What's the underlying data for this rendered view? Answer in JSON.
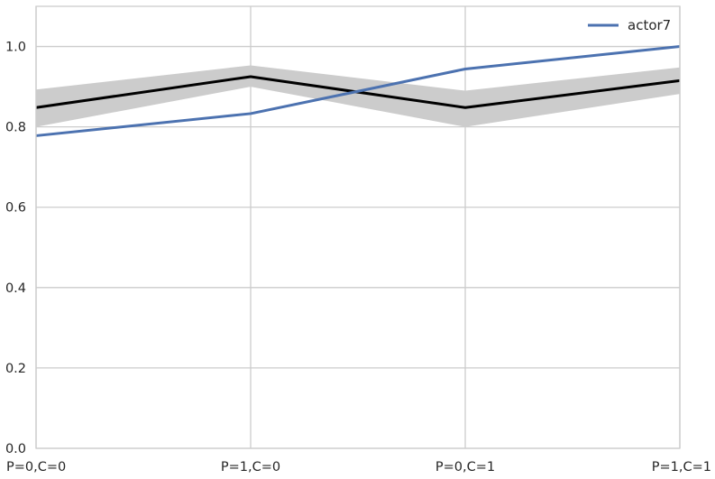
{
  "chart_data": {
    "type": "line",
    "title": "",
    "xlabel": "",
    "ylabel": "",
    "categories": [
      "P=0,C=0",
      "P=1,C=0",
      "P=0,C=1",
      "P=1,C=1"
    ],
    "ylim": [
      0.0,
      1.1
    ],
    "yticks": [
      0.0,
      0.2,
      0.4,
      0.6,
      0.8,
      1.0
    ],
    "ytick_labels": [
      "0.0",
      "0.2",
      "0.4",
      "0.6",
      "0.8",
      "1.0"
    ],
    "grid": true,
    "legend": {
      "position": "top-right",
      "entries": [
        "actor7"
      ]
    },
    "series": [
      {
        "name": "actor7",
        "values": [
          0.778,
          0.833,
          0.944,
          1.0
        ],
        "color": "#4c72b0"
      },
      {
        "values": [
          0.848,
          0.925,
          0.848,
          0.915
        ],
        "lower": [
          0.8,
          0.9,
          0.8,
          0.882
        ],
        "upper": [
          0.893,
          0.953,
          0.89,
          0.948
        ],
        "color": "#000000",
        "band_color": "#cccccc"
      }
    ]
  }
}
